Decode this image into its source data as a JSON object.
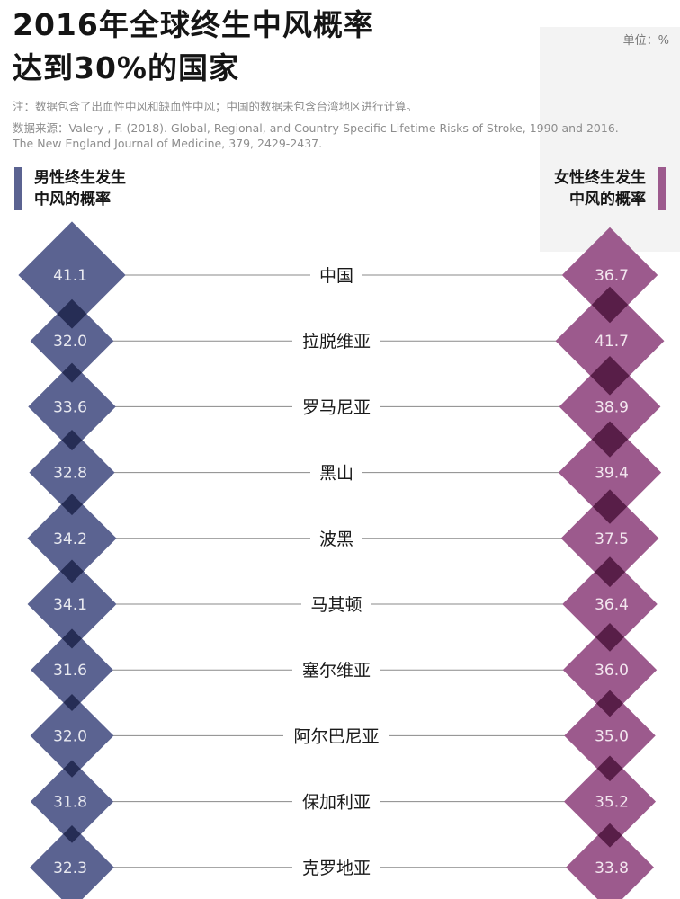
{
  "title": {
    "line1": "2016年全球终生中风概率",
    "line2": "达到30%的国家"
  },
  "unit_label": "单位：%",
  "note": "注：数据包含了出血性中风和缺血性中风；中国的数据未包含台湾地区进行计算。",
  "source": "数据来源：Valery , F. (2018). Global, Regional, and Country-Specific Lifetime Risks of Stroke, 1990 and 2016. The New England Journal of Medicine, 379, 2429-2437.",
  "left_header": {
    "line1": "男性终生发生",
    "line2": "中风的概率"
  },
  "right_header": {
    "line1": "女性终生发生",
    "line2": "中风的概率"
  },
  "colors": {
    "male": "#5b6391",
    "female": "#9c5a8d",
    "male_overlap": "#262d55",
    "female_overlap": "#581e48",
    "connector": "#8a8a8a"
  },
  "chart_data": {
    "type": "diamond-dumbbell",
    "categories": [
      "中国",
      "拉脱维亚",
      "罗马尼亚",
      "黑山",
      "波黑",
      "马其顿",
      "塞尔维亚",
      "阿尔巴尼亚",
      "保加利亚",
      "克罗地亚"
    ],
    "series": [
      {
        "name": "男性终生发生中风的概率",
        "values": [
          41.1,
          32.0,
          33.6,
          32.8,
          34.2,
          34.1,
          31.6,
          32.0,
          31.8,
          32.3
        ]
      },
      {
        "name": "女性终生发生中风的概率",
        "values": [
          36.7,
          41.7,
          38.9,
          39.4,
          37.5,
          36.4,
          36.0,
          35.0,
          35.2,
          33.8
        ]
      }
    ],
    "value_labels": {
      "male": [
        "41.1",
        "32.0",
        "33.6",
        "32.8",
        "34.2",
        "34.1",
        "31.6",
        "32.0",
        "31.8",
        "32.3"
      ],
      "female": [
        "36.7",
        "41.7",
        "38.9",
        "39.4",
        "37.5",
        "36.4",
        "36.0",
        "35.0",
        "35.2",
        "33.8"
      ]
    }
  }
}
